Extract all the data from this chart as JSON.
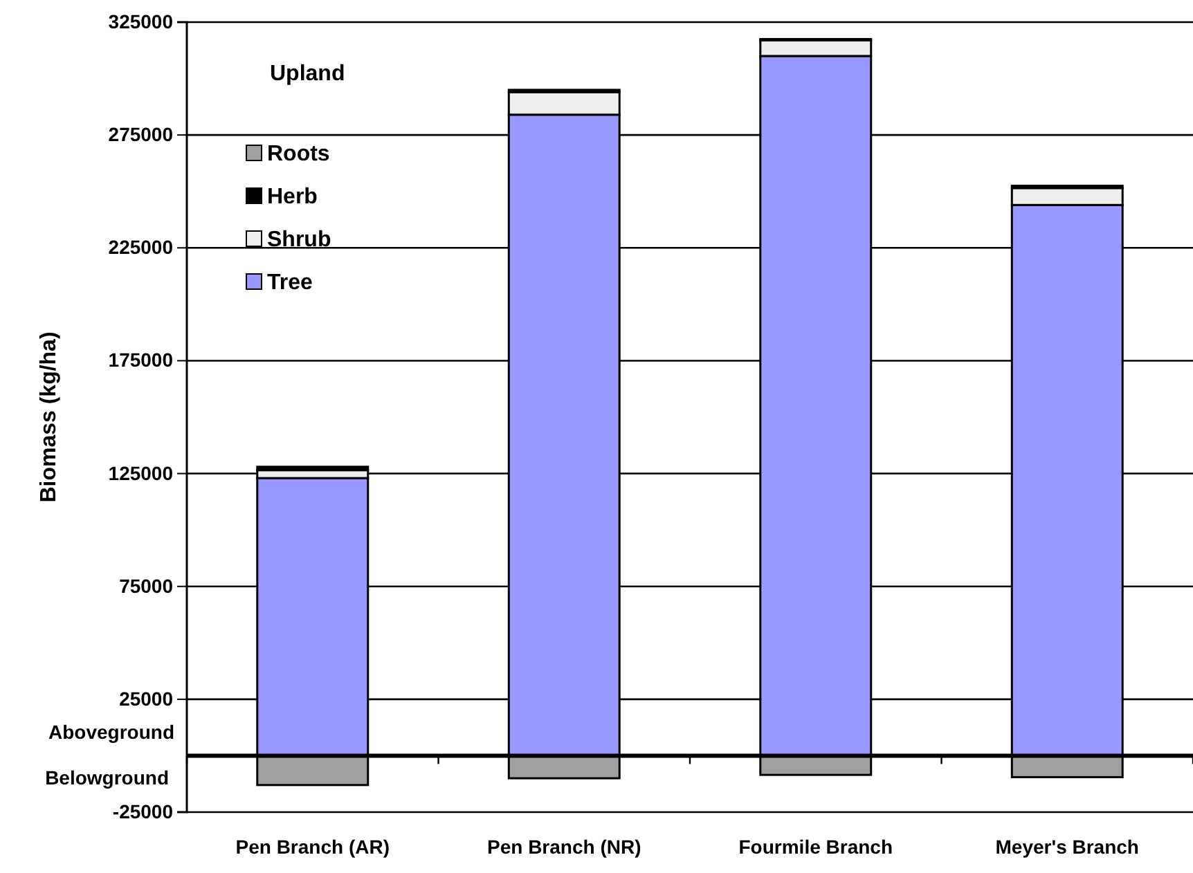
{
  "chart_data": {
    "type": "bar",
    "stacked": true,
    "ylabel": "Biomass (kg/ha)",
    "categories": [
      "Pen Branch (AR)",
      "Pen Branch (NR)",
      "Fourmile Branch",
      "Meyer's Branch"
    ],
    "series": [
      {
        "name": "Tree",
        "color": "#9999ff",
        "values": [
          123000,
          284000,
          310000,
          244000
        ]
      },
      {
        "name": "Shrub",
        "color": "#eeeeee",
        "values": [
          3500,
          10000,
          7000,
          7500
        ]
      },
      {
        "name": "Herb",
        "color": "#000000",
        "values": [
          1500,
          1000,
          500,
          1000
        ]
      },
      {
        "name": "Roots",
        "color": "#a0a0a0",
        "values": [
          -13000,
          -10000,
          -8500,
          -9500
        ]
      }
    ],
    "ylim": [
      -25000,
      325000
    ],
    "yticks": [
      -25000,
      25000,
      75000,
      125000,
      175000,
      225000,
      275000,
      325000
    ],
    "grid": "y",
    "legend": "top left",
    "annotations": [
      "Upland",
      "Aboveground",
      "Belowground"
    ]
  }
}
